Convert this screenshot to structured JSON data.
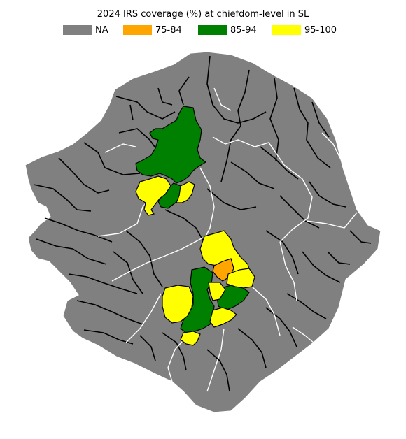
{
  "map": {
    "title": "2024 IRS coverage (%) at chiefdom-level in SL",
    "legend": [
      {
        "label": "NA",
        "color": "#808080"
      },
      {
        "label": "75-84",
        "color": "#ffa500"
      },
      {
        "label": "85-94",
        "color": "#008000"
      },
      {
        "label": "95-100",
        "color": "#ffff00"
      }
    ],
    "colors": {
      "na": "#808080",
      "c75_84": "#ffa500",
      "c85_94": "#008000",
      "c95_100": "#ffff00",
      "chiefdom_border": "#000000",
      "district_border": "#ffffff"
    }
  }
}
